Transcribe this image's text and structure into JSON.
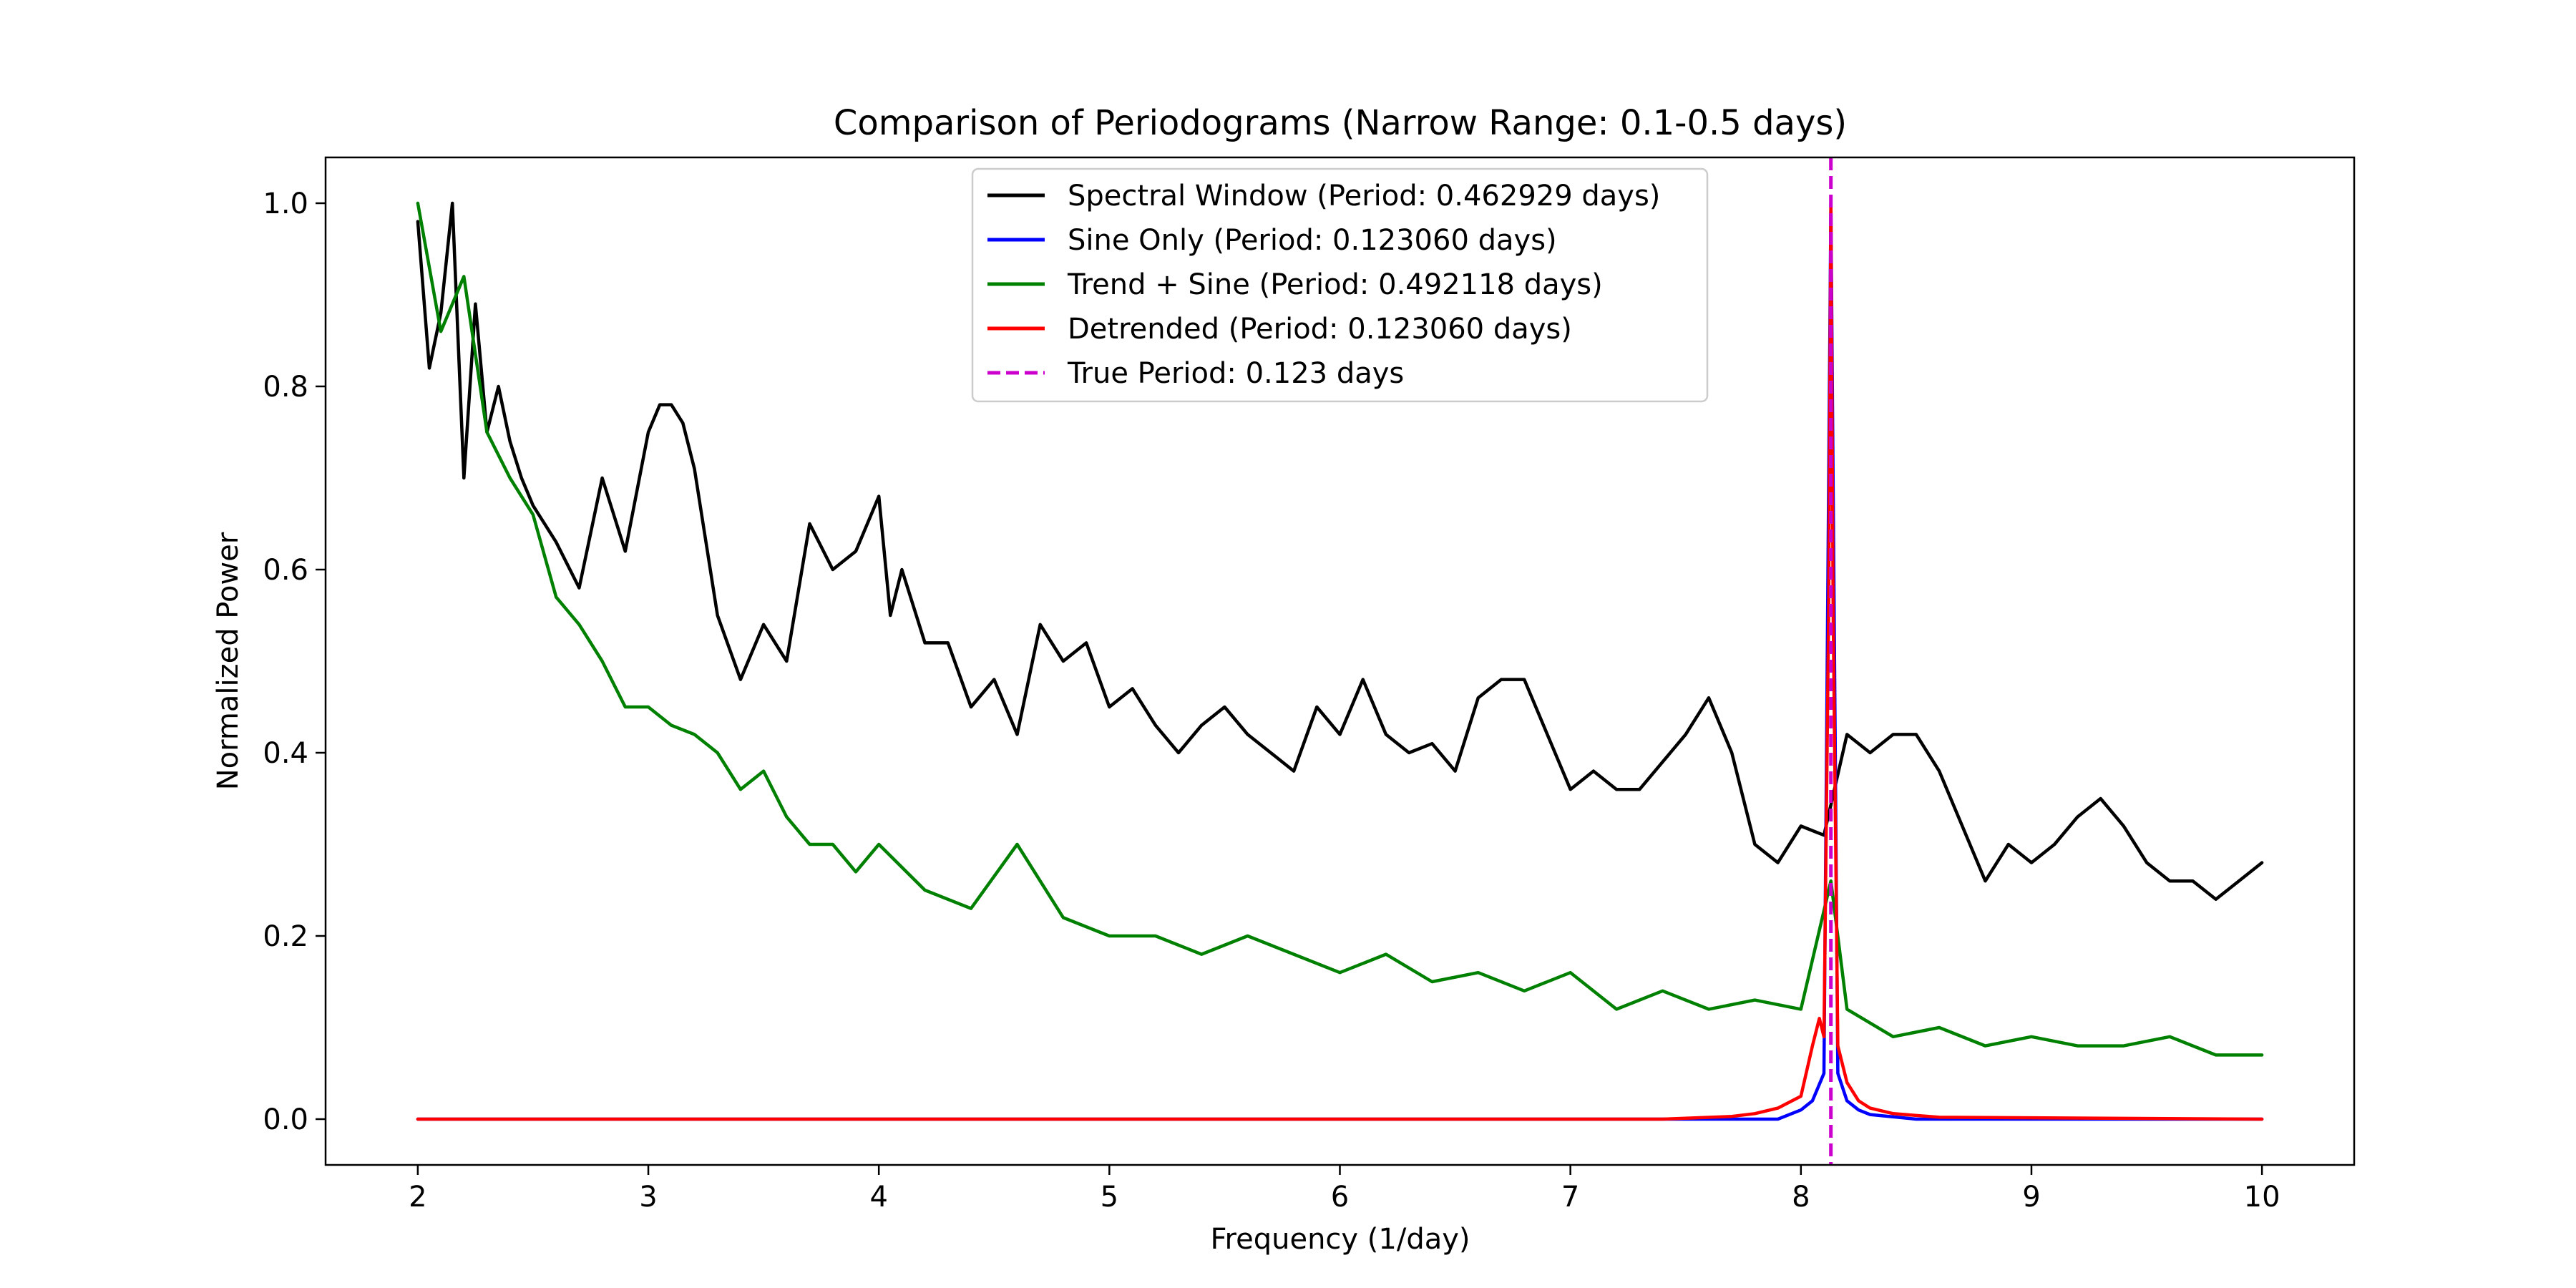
{
  "chart_data": {
    "type": "line",
    "title": "Comparison of Periodograms (Narrow Range: 0.1-0.5 days)",
    "xlabel": "Frequency (1/day)",
    "ylabel": "Normalized Power",
    "xlim": [
      1.6,
      10.4
    ],
    "ylim": [
      -0.05,
      1.05
    ],
    "x_ticks": [
      2,
      3,
      4,
      5,
      6,
      7,
      8,
      9,
      10
    ],
    "y_ticks": [
      0.0,
      0.2,
      0.4,
      0.6,
      0.8,
      1.0
    ],
    "x_tick_labels": [
      "2",
      "3",
      "4",
      "5",
      "6",
      "7",
      "8",
      "9",
      "10"
    ],
    "y_tick_labels": [
      "0.0",
      "0.2",
      "0.4",
      "0.6",
      "0.8",
      "1.0"
    ],
    "grid": false,
    "legend_position": "top-center",
    "series": [
      {
        "name": "Spectral Window (Period: 0.462929 days)",
        "color": "#000000",
        "style": "solid",
        "x": [
          2.0,
          2.05,
          2.1,
          2.15,
          2.2,
          2.25,
          2.3,
          2.35,
          2.4,
          2.45,
          2.5,
          2.6,
          2.7,
          2.8,
          2.9,
          3.0,
          3.05,
          3.1,
          3.15,
          3.2,
          3.3,
          3.4,
          3.5,
          3.6,
          3.7,
          3.8,
          3.9,
          4.0,
          4.05,
          4.1,
          4.2,
          4.3,
          4.4,
          4.5,
          4.6,
          4.7,
          4.8,
          4.9,
          5.0,
          5.1,
          5.2,
          5.3,
          5.4,
          5.5,
          5.6,
          5.7,
          5.8,
          5.9,
          6.0,
          6.1,
          6.2,
          6.3,
          6.4,
          6.5,
          6.6,
          6.7,
          6.8,
          6.9,
          7.0,
          7.1,
          7.2,
          7.3,
          7.4,
          7.5,
          7.6,
          7.7,
          7.8,
          7.9,
          8.0,
          8.1,
          8.2,
          8.3,
          8.4,
          8.5,
          8.6,
          8.7,
          8.8,
          8.9,
          9.0,
          9.1,
          9.2,
          9.3,
          9.4,
          9.5,
          9.6,
          9.7,
          9.8,
          9.9,
          10.0
        ],
        "y": [
          0.98,
          0.82,
          0.88,
          1.0,
          0.7,
          0.89,
          0.75,
          0.8,
          0.74,
          0.7,
          0.67,
          0.63,
          0.58,
          0.7,
          0.62,
          0.75,
          0.78,
          0.78,
          0.76,
          0.71,
          0.55,
          0.48,
          0.54,
          0.5,
          0.65,
          0.6,
          0.62,
          0.68,
          0.55,
          0.6,
          0.52,
          0.52,
          0.45,
          0.48,
          0.42,
          0.54,
          0.5,
          0.52,
          0.45,
          0.47,
          0.43,
          0.4,
          0.43,
          0.45,
          0.42,
          0.4,
          0.38,
          0.45,
          0.42,
          0.48,
          0.42,
          0.4,
          0.41,
          0.38,
          0.46,
          0.48,
          0.48,
          0.42,
          0.36,
          0.38,
          0.36,
          0.36,
          0.39,
          0.42,
          0.46,
          0.4,
          0.3,
          0.28,
          0.32,
          0.31,
          0.42,
          0.4,
          0.42,
          0.42,
          0.38,
          0.32,
          0.26,
          0.3,
          0.28,
          0.3,
          0.33,
          0.35,
          0.32,
          0.28,
          0.26,
          0.26,
          0.24,
          0.26,
          0.28
        ]
      },
      {
        "name": "Sine Only (Period: 0.123060 days)",
        "color": "#0000ff",
        "style": "solid",
        "x": [
          2.0,
          7.5,
          7.9,
          8.0,
          8.05,
          8.1,
          8.13,
          8.16,
          8.2,
          8.25,
          8.3,
          8.5,
          10.0
        ],
        "y": [
          0.0,
          0.0,
          0.0,
          0.01,
          0.02,
          0.05,
          1.0,
          0.05,
          0.02,
          0.01,
          0.005,
          0.0,
          0.0
        ]
      },
      {
        "name": "Trend + Sine (Period: 0.492118 days)",
        "color": "#008000",
        "style": "solid",
        "x": [
          2.0,
          2.1,
          2.2,
          2.3,
          2.4,
          2.5,
          2.6,
          2.7,
          2.8,
          2.9,
          3.0,
          3.1,
          3.2,
          3.3,
          3.4,
          3.5,
          3.6,
          3.7,
          3.8,
          3.9,
          4.0,
          4.2,
          4.4,
          4.6,
          4.8,
          5.0,
          5.2,
          5.4,
          5.6,
          5.8,
          6.0,
          6.2,
          6.4,
          6.6,
          6.8,
          7.0,
          7.2,
          7.4,
          7.6,
          7.8,
          8.0,
          8.13,
          8.2,
          8.4,
          8.6,
          8.8,
          9.0,
          9.2,
          9.4,
          9.6,
          9.8,
          10.0
        ],
        "y": [
          1.0,
          0.86,
          0.92,
          0.75,
          0.7,
          0.66,
          0.57,
          0.54,
          0.5,
          0.45,
          0.45,
          0.43,
          0.42,
          0.4,
          0.36,
          0.38,
          0.33,
          0.3,
          0.3,
          0.27,
          0.3,
          0.25,
          0.23,
          0.3,
          0.22,
          0.2,
          0.2,
          0.18,
          0.2,
          0.18,
          0.16,
          0.18,
          0.15,
          0.16,
          0.14,
          0.16,
          0.12,
          0.14,
          0.12,
          0.13,
          0.12,
          0.26,
          0.12,
          0.09,
          0.1,
          0.08,
          0.09,
          0.08,
          0.08,
          0.09,
          0.07,
          0.07
        ]
      },
      {
        "name": "Detrended (Period: 0.123060 days)",
        "color": "#ff0000",
        "style": "solid",
        "x": [
          2.0,
          7.4,
          7.7,
          7.8,
          7.9,
          8.0,
          8.05,
          8.08,
          8.1,
          8.12,
          8.13,
          8.14,
          8.16,
          8.2,
          8.25,
          8.3,
          8.4,
          8.6,
          10.0
        ],
        "y": [
          0.0,
          0.0,
          0.003,
          0.006,
          0.012,
          0.025,
          0.08,
          0.11,
          0.09,
          0.55,
          1.0,
          0.55,
          0.08,
          0.04,
          0.02,
          0.012,
          0.006,
          0.002,
          0.0
        ]
      }
    ],
    "reference_lines": [
      {
        "name": "True Period: 0.123 days",
        "orientation": "vertical",
        "x": 8.13,
        "color": "#cc00cc",
        "style": "dashed"
      }
    ]
  }
}
